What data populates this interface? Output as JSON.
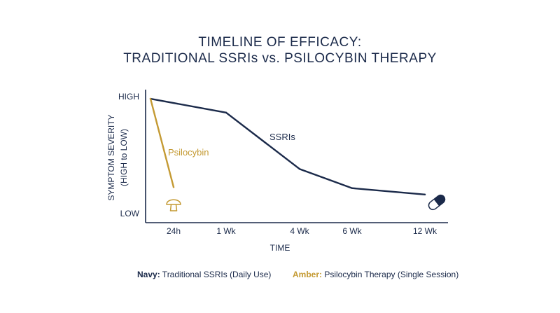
{
  "title_line1": "TIMELINE OF EFFICACY:",
  "title_line2": "TRADITIONAL SSRIs vs. PSILOCYBIN THERAPY",
  "colors": {
    "navy": "#1b2a4a",
    "amber": "#c49a33",
    "axis": "#1b2a4a"
  },
  "legend": {
    "navy_key": "Navy:",
    "navy_text": " Traditional SSRIs (Daily Use)",
    "amber_key": "Amber:",
    "amber_text": " Psilocybin Therapy (Single Session)"
  },
  "icons": {
    "ssri_end": "pill-icon",
    "psilocybin_end": "mushroom-icon"
  },
  "chart_data": {
    "type": "line",
    "xlabel": "TIME",
    "ylabel": "SYMPTOM SEVERITY (HIGH to LOW)",
    "ylabel_line1": "SYMPTOM SEVERITY",
    "ylabel_line2": "(HIGH to LOW)",
    "y_tick_labels": [
      "HIGH",
      "LOW"
    ],
    "x_tick_labels": [
      "24h",
      "1 Wk",
      "4 Wk",
      "6 Wk",
      "12 Wk"
    ],
    "ylim": [
      0,
      100
    ],
    "grid": false,
    "series": [
      {
        "name": "SSRIs",
        "color": "#1b2a4a",
        "points": [
          {
            "x": "start",
            "y": 98
          },
          {
            "x": "1 Wk",
            "y": 85
          },
          {
            "x": "4 Wk",
            "y": 32
          },
          {
            "x": "6 Wk",
            "y": 14
          },
          {
            "x": "12 Wk",
            "y": 8
          }
        ]
      },
      {
        "name": "Psilocybin",
        "color": "#c49a33",
        "points": [
          {
            "x": "start",
            "y": 98
          },
          {
            "x": "24h",
            "y": 15
          }
        ]
      }
    ]
  }
}
